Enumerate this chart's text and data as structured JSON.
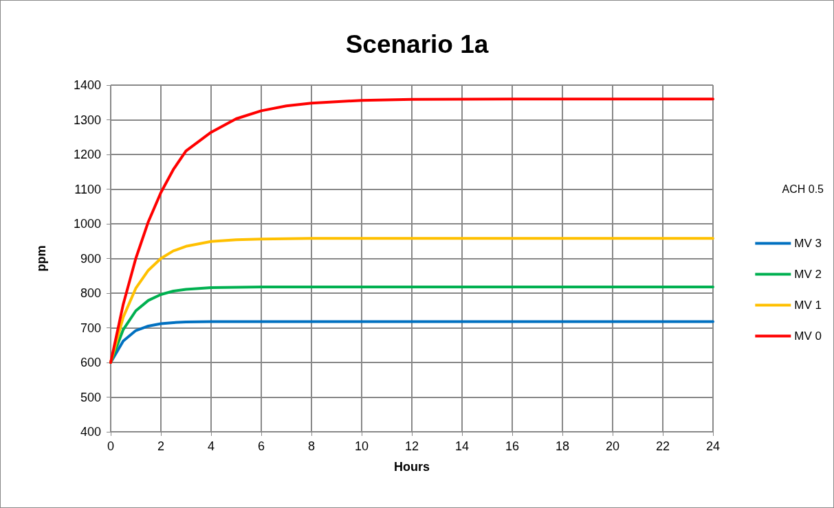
{
  "chart_data": {
    "type": "line",
    "title": "Scenario 1a",
    "xlabel": "Hours",
    "ylabel": "ppm",
    "legend_title": "ACH 0.5",
    "legend": "right",
    "grid": true,
    "marker": "none",
    "line_style": "solid",
    "xlim": [
      0,
      24
    ],
    "xticks": [
      0,
      2,
      4,
      6,
      8,
      10,
      12,
      14,
      16,
      18,
      20,
      22,
      24
    ],
    "ylim": [
      400,
      1400
    ],
    "yticks": [
      400,
      500,
      600,
      700,
      800,
      900,
      1000,
      1100,
      1200,
      1300,
      1400
    ],
    "x": [
      0,
      0.5,
      1,
      1.5,
      2,
      2.5,
      3,
      4,
      5,
      6,
      7,
      8,
      10,
      12,
      16,
      20,
      24
    ],
    "series": [
      {
        "name": "MV 3",
        "color": "#0070c0",
        "values": [
          600,
          662,
          692,
          705,
          712,
          715,
          717,
          718,
          718,
          718,
          718,
          718,
          718,
          718,
          718,
          718,
          718
        ]
      },
      {
        "name": "MV 2",
        "color": "#00b050",
        "values": [
          600,
          695,
          749,
          779,
          796,
          806,
          811,
          816,
          817,
          818,
          818,
          818,
          818,
          818,
          818,
          818,
          818
        ]
      },
      {
        "name": "MV 1",
        "color": "#ffc000",
        "values": [
          600,
          731,
          814,
          866,
          900,
          922,
          935,
          949,
          954,
          956,
          957,
          958,
          958,
          958,
          958,
          958,
          958
        ]
      },
      {
        "name": "MV 0",
        "color": "#ff0000",
        "values": [
          600,
          768,
          900,
          1006,
          1090,
          1157,
          1210,
          1264,
          1303,
          1326,
          1340,
          1348,
          1356,
          1359,
          1360,
          1360,
          1360
        ]
      }
    ]
  }
}
